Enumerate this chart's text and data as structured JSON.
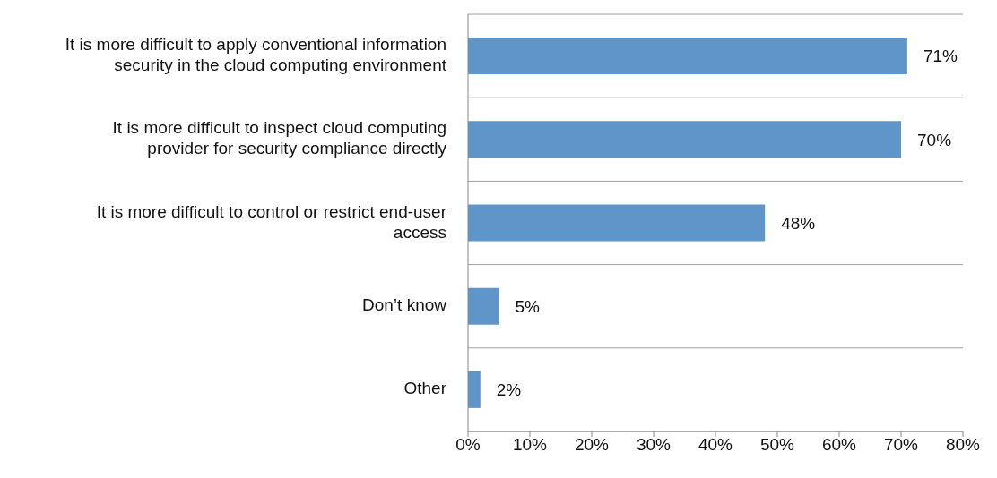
{
  "chart_data": {
    "type": "bar",
    "orientation": "horizontal",
    "categories": [
      "It is more difficult to apply conventional information security in the cloud computing environment",
      "It is more difficult to inspect cloud computing provider for security compliance directly",
      "It is more difficult to control or restrict end-user access",
      "Don’t know",
      "Other"
    ],
    "values": [
      71,
      70,
      48,
      5,
      2
    ],
    "value_labels": [
      "71%",
      "70%",
      "48%",
      "5%",
      "2%"
    ],
    "color": "#5f96c9",
    "xlim": [
      0,
      80
    ],
    "xticks": [
      {
        "value": 0,
        "label": "0%"
      },
      {
        "value": 10,
        "label": "10%"
      },
      {
        "value": 20,
        "label": "20%"
      },
      {
        "value": 30,
        "label": "30%"
      },
      {
        "value": 40,
        "label": "40%"
      },
      {
        "value": 50,
        "label": "50%"
      },
      {
        "value": 60,
        "label": "60%"
      },
      {
        "value": 70,
        "label": "70%"
      },
      {
        "value": 80,
        "label": "80%"
      }
    ],
    "grid": "y"
  }
}
